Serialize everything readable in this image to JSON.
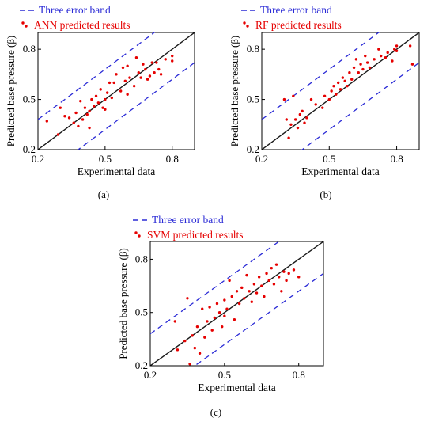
{
  "colors": {
    "band": "#2b2bd6",
    "identity": "#1a1a1a",
    "points": "#e60000",
    "legend_results_text": "#e60000",
    "legend_band_text": "#2b2bd6"
  },
  "charts": [
    {
      "type": "scatter",
      "panel_label": "(a)",
      "legend": {
        "band": "Three error band",
        "points": "ANN predicted results",
        "position": "top-left-outside"
      },
      "xlabel": "Experimental data",
      "ylabel": "Predicted base pressure (β)",
      "xlim": [
        0.2,
        0.9
      ],
      "ylim": [
        0.2,
        0.9
      ],
      "xticks": [
        "0.2",
        "0.5",
        "0.8"
      ],
      "yticks": [
        "0.2",
        "0.5",
        "0.8"
      ],
      "grid": false,
      "identity_line": "y = x",
      "error_band": {
        "upper": "y = x + 0.18",
        "lower": "y = x - 0.18"
      },
      "points": [
        [
          0.24,
          0.37
        ],
        [
          0.29,
          0.29
        ],
        [
          0.3,
          0.45
        ],
        [
          0.32,
          0.4
        ],
        [
          0.34,
          0.39
        ],
        [
          0.36,
          0.36
        ],
        [
          0.37,
          0.42
        ],
        [
          0.38,
          0.34
        ],
        [
          0.39,
          0.49
        ],
        [
          0.4,
          0.38
        ],
        [
          0.41,
          0.45
        ],
        [
          0.42,
          0.41
        ],
        [
          0.43,
          0.43
        ],
        [
          0.43,
          0.33
        ],
        [
          0.44,
          0.5
        ],
        [
          0.45,
          0.46
        ],
        [
          0.46,
          0.52
        ],
        [
          0.47,
          0.48
        ],
        [
          0.48,
          0.56
        ],
        [
          0.49,
          0.45
        ],
        [
          0.5,
          0.5
        ],
        [
          0.5,
          0.44
        ],
        [
          0.51,
          0.54
        ],
        [
          0.52,
          0.6
        ],
        [
          0.53,
          0.51
        ],
        [
          0.54,
          0.6
        ],
        [
          0.55,
          0.65
        ],
        [
          0.57,
          0.55
        ],
        [
          0.58,
          0.69
        ],
        [
          0.59,
          0.61
        ],
        [
          0.6,
          0.53
        ],
        [
          0.6,
          0.7
        ],
        [
          0.61,
          0.63
        ],
        [
          0.63,
          0.58
        ],
        [
          0.64,
          0.75
        ],
        [
          0.65,
          0.66
        ],
        [
          0.66,
          0.63
        ],
        [
          0.67,
          0.71
        ],
        [
          0.68,
          0.68
        ],
        [
          0.69,
          0.62
        ],
        [
          0.7,
          0.64
        ],
        [
          0.71,
          0.72
        ],
        [
          0.72,
          0.66
        ],
        [
          0.73,
          0.72
        ],
        [
          0.74,
          0.68
        ],
        [
          0.75,
          0.65
        ],
        [
          0.77,
          0.74
        ],
        [
          0.8,
          0.73
        ],
        [
          0.8,
          0.76
        ]
      ]
    },
    {
      "type": "scatter",
      "panel_label": "(b)",
      "legend": {
        "band": "Three error band",
        "points": "RF predicted results",
        "position": "top-left-outside"
      },
      "xlabel": "Experimental data",
      "ylabel": "Predicted base pressure (β)",
      "xlim": [
        0.2,
        0.9
      ],
      "ylim": [
        0.2,
        0.9
      ],
      "xticks": [
        "0.2",
        "0.5",
        "0.8"
      ],
      "yticks": [
        "0.2",
        "0.5",
        "0.8"
      ],
      "grid": false,
      "identity_line": "y = x",
      "error_band": {
        "upper": "y = x + 0.18",
        "lower": "y = x - 0.18"
      },
      "points": [
        [
          0.3,
          0.5
        ],
        [
          0.31,
          0.38
        ],
        [
          0.32,
          0.27
        ],
        [
          0.33,
          0.35
        ],
        [
          0.34,
          0.52
        ],
        [
          0.35,
          0.38
        ],
        [
          0.36,
          0.33
        ],
        [
          0.37,
          0.41
        ],
        [
          0.38,
          0.43
        ],
        [
          0.39,
          0.36
        ],
        [
          0.4,
          0.39
        ],
        [
          0.42,
          0.5
        ],
        [
          0.44,
          0.47
        ],
        [
          0.47,
          0.45
        ],
        [
          0.48,
          0.52
        ],
        [
          0.5,
          0.5
        ],
        [
          0.51,
          0.55
        ],
        [
          0.52,
          0.58
        ],
        [
          0.53,
          0.53
        ],
        [
          0.54,
          0.6
        ],
        [
          0.55,
          0.56
        ],
        [
          0.56,
          0.63
        ],
        [
          0.57,
          0.61
        ],
        [
          0.58,
          0.58
        ],
        [
          0.59,
          0.66
        ],
        [
          0.6,
          0.62
        ],
        [
          0.61,
          0.69
        ],
        [
          0.62,
          0.74
        ],
        [
          0.63,
          0.66
        ],
        [
          0.64,
          0.71
        ],
        [
          0.65,
          0.68
        ],
        [
          0.66,
          0.76
        ],
        [
          0.67,
          0.72
        ],
        [
          0.68,
          0.69
        ],
        [
          0.7,
          0.74
        ],
        [
          0.72,
          0.8
        ],
        [
          0.73,
          0.76
        ],
        [
          0.75,
          0.75
        ],
        [
          0.76,
          0.78
        ],
        [
          0.78,
          0.73
        ],
        [
          0.79,
          0.8
        ],
        [
          0.8,
          0.82
        ],
        [
          0.8,
          0.79
        ],
        [
          0.86,
          0.82
        ],
        [
          0.87,
          0.71
        ]
      ]
    },
    {
      "type": "scatter",
      "panel_label": "(c)",
      "legend": {
        "band": "Three error band",
        "points": "SVM predicted results",
        "position": "top-left-outside"
      },
      "xlabel": "Experimental data",
      "ylabel": "Predicted base pressure (β)",
      "xlim": [
        0.2,
        0.9
      ],
      "ylim": [
        0.2,
        0.9
      ],
      "xticks": [
        "0.2",
        "0.5",
        "0.8"
      ],
      "yticks": [
        "0.2",
        "0.5",
        "0.8"
      ],
      "grid": false,
      "identity_line": "y = x",
      "error_band": {
        "upper": "y = x + 0.18",
        "lower": "y = x - 0.18"
      },
      "points": [
        [
          0.3,
          0.45
        ],
        [
          0.31,
          0.29
        ],
        [
          0.34,
          0.34
        ],
        [
          0.35,
          0.58
        ],
        [
          0.36,
          0.21
        ],
        [
          0.37,
          0.37
        ],
        [
          0.38,
          0.3
        ],
        [
          0.39,
          0.42
        ],
        [
          0.4,
          0.27
        ],
        [
          0.41,
          0.52
        ],
        [
          0.42,
          0.36
        ],
        [
          0.43,
          0.45
        ],
        [
          0.44,
          0.53
        ],
        [
          0.45,
          0.4
        ],
        [
          0.46,
          0.47
        ],
        [
          0.47,
          0.55
        ],
        [
          0.48,
          0.5
        ],
        [
          0.49,
          0.42
        ],
        [
          0.5,
          0.57
        ],
        [
          0.5,
          0.48
        ],
        [
          0.51,
          0.52
        ],
        [
          0.52,
          0.68
        ],
        [
          0.53,
          0.59
        ],
        [
          0.54,
          0.46
        ],
        [
          0.55,
          0.62
        ],
        [
          0.56,
          0.55
        ],
        [
          0.57,
          0.64
        ],
        [
          0.58,
          0.58
        ],
        [
          0.59,
          0.71
        ],
        [
          0.6,
          0.62
        ],
        [
          0.61,
          0.56
        ],
        [
          0.62,
          0.66
        ],
        [
          0.63,
          0.61
        ],
        [
          0.64,
          0.7
        ],
        [
          0.65,
          0.65
        ],
        [
          0.66,
          0.59
        ],
        [
          0.67,
          0.72
        ],
        [
          0.68,
          0.68
        ],
        [
          0.69,
          0.75
        ],
        [
          0.7,
          0.66
        ],
        [
          0.71,
          0.77
        ],
        [
          0.72,
          0.7
        ],
        [
          0.73,
          0.62
        ],
        [
          0.74,
          0.73
        ],
        [
          0.75,
          0.68
        ],
        [
          0.76,
          0.72
        ],
        [
          0.78,
          0.74
        ],
        [
          0.8,
          0.7
        ]
      ]
    }
  ],
  "chart_data": [
    {
      "ref": "charts.0"
    },
    {
      "ref": "charts.1"
    },
    {
      "ref": "charts.2"
    }
  ]
}
